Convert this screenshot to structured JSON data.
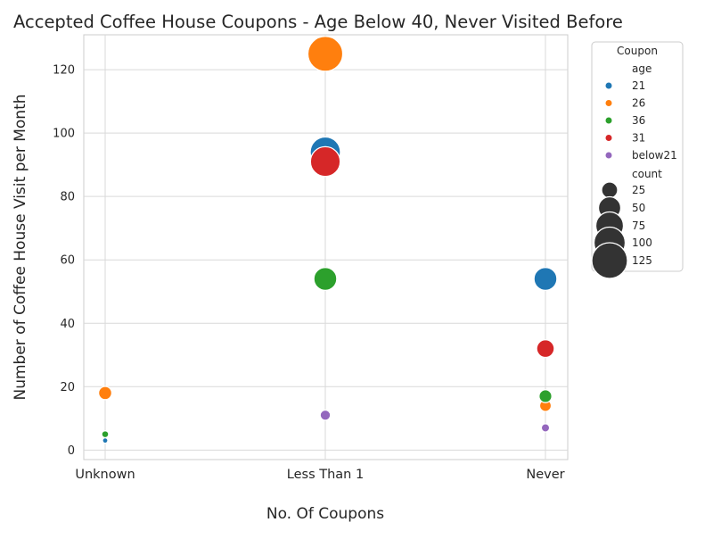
{
  "chart_data": {
    "type": "scatter",
    "title": "Accepted Coffee House Coupons - Age Below 40, Never Visited Before",
    "xlabel": "No. Of Coupons",
    "ylabel": "Number of Coffee House Visit per Month",
    "categories": [
      "Unknown",
      "Less Than 1",
      "Never"
    ],
    "ylim": [
      -3,
      131
    ],
    "yticks": [
      0,
      20,
      40,
      60,
      80,
      100,
      120
    ],
    "grid": true,
    "legend": {
      "placement": "outside-right",
      "title": "Coupon",
      "hue_title": "age",
      "size_title": "count",
      "size_entries": [
        25,
        50,
        75,
        100,
        125
      ]
    },
    "series": [
      {
        "name": "21",
        "color": "#1f77b4",
        "points": [
          {
            "x": "Unknown",
            "y": 3
          },
          {
            "x": "Less Than 1",
            "y": 94
          },
          {
            "x": "Never",
            "y": 54
          }
        ]
      },
      {
        "name": "26",
        "color": "#ff7f0e",
        "points": [
          {
            "x": "Unknown",
            "y": 18
          },
          {
            "x": "Less Than 1",
            "y": 125
          },
          {
            "x": "Never",
            "y": 14
          }
        ]
      },
      {
        "name": "36",
        "color": "#2ca02c",
        "points": [
          {
            "x": "Unknown",
            "y": 5
          },
          {
            "x": "Less Than 1",
            "y": 54
          },
          {
            "x": "Never",
            "y": 17
          }
        ]
      },
      {
        "name": "31",
        "color": "#d62728",
        "points": [
          {
            "x": "Less Than 1",
            "y": 91
          },
          {
            "x": "Never",
            "y": 32
          }
        ]
      },
      {
        "name": "below21",
        "color": "#9467bd",
        "points": [
          {
            "x": "Less Than 1",
            "y": 11
          },
          {
            "x": "Never",
            "y": 7
          }
        ]
      }
    ]
  }
}
